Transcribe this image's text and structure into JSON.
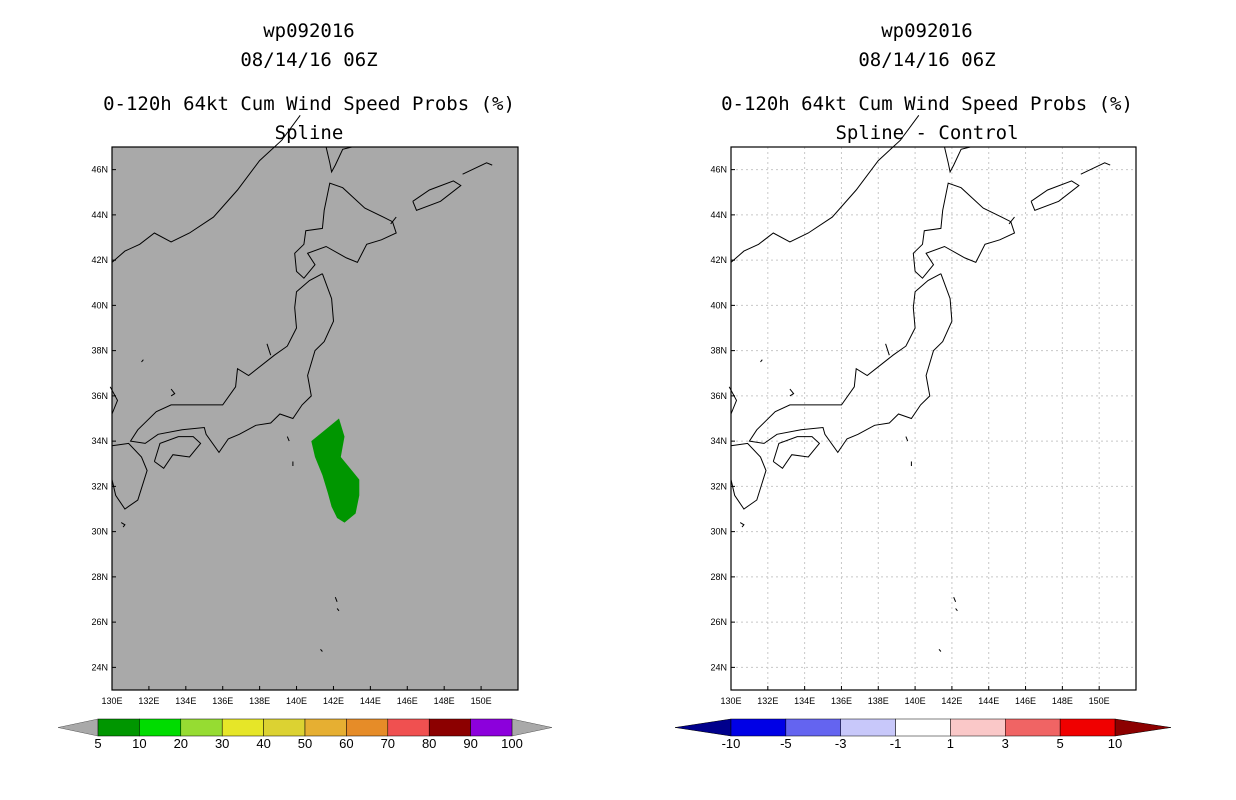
{
  "chart_data": [
    {
      "type": "heatmap",
      "storm_id": "wp092016",
      "datetime": "08/14/16 06Z",
      "title": "0-120h 64kt Cum Wind Speed Probs (%)",
      "subtitle": "Spline",
      "background_color": "#a9a9a9",
      "grid": false,
      "xlim": [
        130,
        152
      ],
      "ylim": [
        23,
        47
      ],
      "x_ticks": [
        "130E",
        "132E",
        "134E",
        "136E",
        "138E",
        "140E",
        "142E",
        "144E",
        "146E",
        "148E",
        "150E"
      ],
      "y_ticks": [
        "24N",
        "26N",
        "28N",
        "30N",
        "32N",
        "34N",
        "36N",
        "38N",
        "40N",
        "42N",
        "44N",
        "46N"
      ],
      "colorbar": {
        "labels": [
          "5",
          "10",
          "20",
          "30",
          "40",
          "50",
          "60",
          "70",
          "80",
          "90",
          "100"
        ],
        "colors": [
          "#009600",
          "#00dc00",
          "#96dc32",
          "#e6e628",
          "#dcd232",
          "#e6af32",
          "#e68c28",
          "#f05050",
          "#8c0000",
          "#8c00dc"
        ]
      },
      "regions": [
        {
          "category": "5-10",
          "color": "#009600",
          "lonlat": [
            [
              142.3,
              35.0
            ],
            [
              142.6,
              34.2
            ],
            [
              142.4,
              33.3
            ],
            [
              142.8,
              32.9
            ],
            [
              143.0,
              32.7
            ],
            [
              143.4,
              32.3
            ],
            [
              143.4,
              31.6
            ],
            [
              143.2,
              30.8
            ],
            [
              142.6,
              30.4
            ],
            [
              142.2,
              30.6
            ],
            [
              141.9,
              31.1
            ],
            [
              141.7,
              31.7
            ],
            [
              141.4,
              32.5
            ],
            [
              141.0,
              33.3
            ],
            [
              140.8,
              34.0
            ],
            [
              141.4,
              34.4
            ]
          ]
        }
      ]
    },
    {
      "type": "heatmap",
      "storm_id": "wp092016",
      "datetime": "08/14/16 06Z",
      "title": "0-120h 64kt Cum Wind Speed Probs (%)",
      "subtitle": "Spline - Control",
      "background_color": "#ffffff",
      "grid": true,
      "xlim": [
        130,
        152
      ],
      "ylim": [
        23,
        47
      ],
      "x_ticks": [
        "130E",
        "132E",
        "134E",
        "136E",
        "138E",
        "140E",
        "142E",
        "144E",
        "146E",
        "148E",
        "150E"
      ],
      "y_ticks": [
        "24N",
        "26N",
        "28N",
        "30N",
        "32N",
        "34N",
        "36N",
        "38N",
        "40N",
        "42N",
        "44N",
        "46N"
      ],
      "colorbar": {
        "labels": [
          "-10",
          "-5",
          "-3",
          "-1",
          "1",
          "3",
          "5",
          "10"
        ],
        "colors": [
          "#0000e6",
          "#6464f0",
          "#c8c8fa",
          "#ffffff",
          "#fac8c8",
          "#f06464",
          "#f00000"
        ],
        "end_colors": [
          "#00008c",
          "#8c0000"
        ]
      },
      "regions": []
    }
  ]
}
